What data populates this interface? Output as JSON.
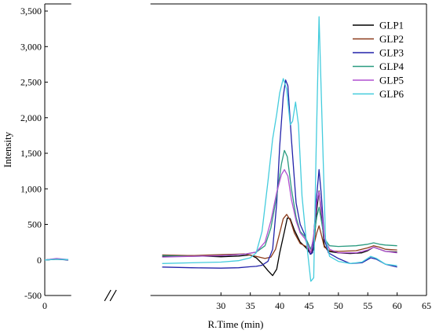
{
  "chart_data": {
    "type": "line",
    "title": "",
    "xlabel": "R.Time (min)",
    "ylabel": "Intensity",
    "xlim": [
      0,
      65
    ],
    "ylim": [
      -500,
      3600
    ],
    "axis_break": {
      "from": 4.5,
      "to": 18,
      "glyph": "//"
    },
    "xticks": [
      0,
      30,
      35,
      40,
      45,
      50,
      55,
      60,
      65
    ],
    "xtick_labels": [
      "0",
      "30",
      "35",
      "40",
      "45",
      "50",
      "55",
      "60",
      "65"
    ],
    "yticks": [
      -500,
      0,
      500,
      1000,
      1500,
      2000,
      2500,
      3000,
      3500
    ],
    "ytick_labels": [
      "-500",
      "0",
      "500",
      "1,000",
      "1,500",
      "2,000",
      "2,500",
      "3,000",
      "3,500"
    ],
    "grid": false,
    "legend_position": "top-right",
    "series": [
      {
        "name": "GLP1",
        "color": "#000000",
        "points": [
          [
            0,
            0
          ],
          [
            2,
            15
          ],
          [
            4,
            0
          ],
          [
            6,
            10
          ],
          [
            20,
            50
          ],
          [
            25,
            60
          ],
          [
            30,
            45
          ],
          [
            33,
            55
          ],
          [
            35,
            70
          ],
          [
            36,
            30
          ],
          [
            37,
            -50
          ],
          [
            38,
            -150
          ],
          [
            38.8,
            -220
          ],
          [
            39.5,
            -130
          ],
          [
            40,
            100
          ],
          [
            40.8,
            400
          ],
          [
            41.3,
            590
          ],
          [
            41.8,
            580
          ],
          [
            42.5,
            420
          ],
          [
            43.5,
            250
          ],
          [
            44.5,
            170
          ],
          [
            45.3,
            80
          ],
          [
            45.8,
            150
          ],
          [
            46.3,
            700
          ],
          [
            46.7,
            970
          ],
          [
            47.1,
            650
          ],
          [
            47.6,
            200
          ],
          [
            48.3,
            120
          ],
          [
            50,
            100
          ],
          [
            52,
            90
          ],
          [
            54,
            100
          ],
          [
            55,
            130
          ],
          [
            56,
            180
          ],
          [
            57,
            150
          ],
          [
            58,
            120
          ],
          [
            60,
            110
          ]
        ]
      },
      {
        "name": "GLP2",
        "color": "#8b3a1a",
        "points": [
          [
            0,
            0
          ],
          [
            2,
            10
          ],
          [
            4,
            5
          ],
          [
            6,
            5
          ],
          [
            20,
            70
          ],
          [
            25,
            60
          ],
          [
            30,
            75
          ],
          [
            34,
            85
          ],
          [
            36,
            50
          ],
          [
            37.5,
            20
          ],
          [
            38.5,
            40
          ],
          [
            39.3,
            150
          ],
          [
            40,
            380
          ],
          [
            40.6,
            580
          ],
          [
            41.2,
            640
          ],
          [
            41.8,
            560
          ],
          [
            42.5,
            380
          ],
          [
            43.5,
            230
          ],
          [
            44.5,
            190
          ],
          [
            45.3,
            100
          ],
          [
            45.8,
            200
          ],
          [
            46.3,
            380
          ],
          [
            46.7,
            480
          ],
          [
            47.1,
            350
          ],
          [
            47.6,
            180
          ],
          [
            48.5,
            130
          ],
          [
            50,
            120
          ],
          [
            53,
            130
          ],
          [
            55,
            170
          ],
          [
            56,
            200
          ],
          [
            57,
            180
          ],
          [
            58,
            150
          ],
          [
            60,
            140
          ]
        ]
      },
      {
        "name": "GLP3",
        "color": "#2222aa",
        "points": [
          [
            0,
            0
          ],
          [
            2,
            10
          ],
          [
            4,
            0
          ],
          [
            6,
            -5
          ],
          [
            20,
            -100
          ],
          [
            25,
            -110
          ],
          [
            30,
            -115
          ],
          [
            33,
            -110
          ],
          [
            35,
            -95
          ],
          [
            36,
            -90
          ],
          [
            37,
            -75
          ],
          [
            38,
            -20
          ],
          [
            38.8,
            150
          ],
          [
            39.5,
            800
          ],
          [
            40,
            1600
          ],
          [
            40.6,
            2300
          ],
          [
            41,
            2530
          ],
          [
            41.4,
            2450
          ],
          [
            42,
            1700
          ],
          [
            42.8,
            800
          ],
          [
            43.5,
            500
          ],
          [
            44.3,
            350
          ],
          [
            45.2,
            80
          ],
          [
            45.6,
            100
          ],
          [
            46.2,
            800
          ],
          [
            46.7,
            1270
          ],
          [
            47.1,
            900
          ],
          [
            47.6,
            300
          ],
          [
            48.3,
            100
          ],
          [
            50,
            20
          ],
          [
            52,
            -50
          ],
          [
            54,
            -40
          ],
          [
            55.5,
            30
          ],
          [
            56.5,
            10
          ],
          [
            58,
            -60
          ],
          [
            60,
            -100
          ]
        ]
      },
      {
        "name": "GLP4",
        "color": "#2a9b80",
        "points": [
          [
            0,
            0
          ],
          [
            2,
            10
          ],
          [
            4,
            5
          ],
          [
            6,
            10
          ],
          [
            20,
            60
          ],
          [
            25,
            50
          ],
          [
            30,
            60
          ],
          [
            34,
            80
          ],
          [
            36,
            110
          ],
          [
            37.5,
            200
          ],
          [
            38.5,
            450
          ],
          [
            39.5,
            900
          ],
          [
            40.3,
            1350
          ],
          [
            40.8,
            1540
          ],
          [
            41.3,
            1450
          ],
          [
            42,
            1000
          ],
          [
            42.8,
            600
          ],
          [
            43.5,
            400
          ],
          [
            44.3,
            330
          ],
          [
            45.3,
            150
          ],
          [
            45.8,
            300
          ],
          [
            46.3,
            600
          ],
          [
            46.7,
            740
          ],
          [
            47.1,
            550
          ],
          [
            47.6,
            300
          ],
          [
            48.5,
            200
          ],
          [
            50,
            190
          ],
          [
            53,
            200
          ],
          [
            55,
            220
          ],
          [
            56,
            240
          ],
          [
            57,
            220
          ],
          [
            58,
            210
          ],
          [
            60,
            200
          ]
        ]
      },
      {
        "name": "GLP5",
        "color": "#b050d0",
        "points": [
          [
            0,
            0
          ],
          [
            2,
            20
          ],
          [
            4,
            5
          ],
          [
            6,
            15
          ],
          [
            20,
            40
          ],
          [
            25,
            50
          ],
          [
            30,
            60
          ],
          [
            34,
            80
          ],
          [
            36,
            110
          ],
          [
            37.5,
            250
          ],
          [
            38.5,
            550
          ],
          [
            39.5,
            950
          ],
          [
            40.3,
            1200
          ],
          [
            40.8,
            1270
          ],
          [
            41.4,
            1180
          ],
          [
            42,
            850
          ],
          [
            42.8,
            550
          ],
          [
            43.5,
            380
          ],
          [
            44.3,
            300
          ],
          [
            45.3,
            100
          ],
          [
            45.8,
            350
          ],
          [
            46.3,
            800
          ],
          [
            46.7,
            960
          ],
          [
            47.1,
            700
          ],
          [
            47.6,
            300
          ],
          [
            48.5,
            150
          ],
          [
            50,
            100
          ],
          [
            53,
            100
          ],
          [
            55,
            140
          ],
          [
            56,
            180
          ],
          [
            57,
            150
          ],
          [
            58,
            120
          ],
          [
            60,
            100
          ]
        ]
      },
      {
        "name": "GLP6",
        "color": "#44ccdd",
        "points": [
          [
            0,
            0
          ],
          [
            2,
            10
          ],
          [
            4,
            5
          ],
          [
            6,
            5
          ],
          [
            20,
            -50
          ],
          [
            25,
            -40
          ],
          [
            30,
            -30
          ],
          [
            33,
            -10
          ],
          [
            35,
            30
          ],
          [
            36,
            100
          ],
          [
            37,
            400
          ],
          [
            38,
            1100
          ],
          [
            38.8,
            1700
          ],
          [
            39.5,
            2050
          ],
          [
            40,
            2350
          ],
          [
            40.6,
            2550
          ],
          [
            41.2,
            2400
          ],
          [
            41.8,
            1900
          ],
          [
            42.2,
            1950
          ],
          [
            42.7,
            2220
          ],
          [
            43.2,
            1900
          ],
          [
            43.8,
            900
          ],
          [
            44.5,
            300
          ],
          [
            45.3,
            -300
          ],
          [
            45.8,
            -250
          ],
          [
            46.2,
            1500
          ],
          [
            46.7,
            3420
          ],
          [
            47.2,
            2000
          ],
          [
            47.8,
            300
          ],
          [
            48.5,
            50
          ],
          [
            50,
            -20
          ],
          [
            52,
            -50
          ],
          [
            54,
            -30
          ],
          [
            55.5,
            50
          ],
          [
            56.5,
            20
          ],
          [
            58,
            -60
          ],
          [
            60,
            -80
          ]
        ]
      }
    ]
  }
}
